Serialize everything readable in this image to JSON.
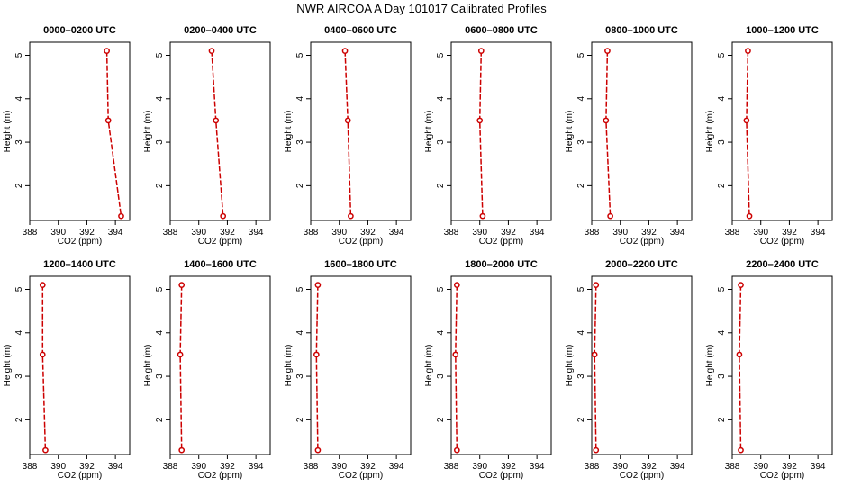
{
  "title": "NWR AIRCOA A  Day 101017  Calibrated Profiles",
  "colors": {
    "series": "#cc0000",
    "axis": "#000000"
  },
  "chart_data": [
    {
      "type": "line",
      "title": "0000–0200 UTC",
      "xlabel": "CO2 (ppm)",
      "ylabel": "Height (m)",
      "xlim": [
        388,
        395
      ],
      "ylim": [
        1.2,
        5.3
      ],
      "xticks": [
        388,
        390,
        392,
        394
      ],
      "yticks": [
        2,
        3,
        4,
        5
      ],
      "grid": false,
      "x": [
        393.4,
        393.5,
        394.4
      ],
      "y": [
        5.1,
        3.5,
        1.3
      ]
    },
    {
      "type": "line",
      "title": "0200–0400 UTC",
      "xlabel": "CO2 (ppm)",
      "ylabel": "Height (m)",
      "xlim": [
        388,
        395
      ],
      "ylim": [
        1.2,
        5.3
      ],
      "xticks": [
        388,
        390,
        392,
        394
      ],
      "yticks": [
        2,
        3,
        4,
        5
      ],
      "grid": false,
      "x": [
        390.9,
        391.2,
        391.7
      ],
      "y": [
        5.1,
        3.5,
        1.3
      ]
    },
    {
      "type": "line",
      "title": "0400–0600 UTC",
      "xlabel": "CO2 (ppm)",
      "ylabel": "Height (m)",
      "xlim": [
        388,
        395
      ],
      "ylim": [
        1.2,
        5.3
      ],
      "xticks": [
        388,
        390,
        392,
        394
      ],
      "yticks": [
        2,
        3,
        4,
        5
      ],
      "grid": false,
      "x": [
        390.4,
        390.6,
        390.8
      ],
      "y": [
        5.1,
        3.5,
        1.3
      ]
    },
    {
      "type": "line",
      "title": "0600–0800 UTC",
      "xlabel": "CO2 (ppm)",
      "ylabel": "Height (m)",
      "xlim": [
        388,
        395
      ],
      "ylim": [
        1.2,
        5.3
      ],
      "xticks": [
        388,
        390,
        392,
        394
      ],
      "yticks": [
        2,
        3,
        4,
        5
      ],
      "grid": false,
      "x": [
        390.1,
        390.0,
        390.2
      ],
      "y": [
        5.1,
        3.5,
        1.3
      ]
    },
    {
      "type": "line",
      "title": "0800–1000 UTC",
      "xlabel": "CO2 (ppm)",
      "ylabel": "Height (m)",
      "xlim": [
        388,
        395
      ],
      "ylim": [
        1.2,
        5.3
      ],
      "xticks": [
        388,
        390,
        392,
        394
      ],
      "yticks": [
        2,
        3,
        4,
        5
      ],
      "grid": false,
      "x": [
        389.1,
        389.0,
        389.3
      ],
      "y": [
        5.1,
        3.5,
        1.3
      ]
    },
    {
      "type": "line",
      "title": "1000–1200 UTC",
      "xlabel": "CO2 (ppm)",
      "ylabel": "Height (m)",
      "xlim": [
        388,
        395
      ],
      "ylim": [
        1.2,
        5.3
      ],
      "xticks": [
        388,
        390,
        392,
        394
      ],
      "yticks": [
        2,
        3,
        4,
        5
      ],
      "grid": false,
      "x": [
        389.1,
        389.0,
        389.2
      ],
      "y": [
        5.1,
        3.5,
        1.3
      ]
    },
    {
      "type": "line",
      "title": "1200–1400 UTC",
      "xlabel": "CO2 (ppm)",
      "ylabel": "Height (m)",
      "xlim": [
        388,
        395
      ],
      "ylim": [
        1.2,
        5.3
      ],
      "xticks": [
        388,
        390,
        392,
        394
      ],
      "yticks": [
        2,
        3,
        4,
        5
      ],
      "grid": false,
      "x": [
        388.9,
        388.9,
        389.1
      ],
      "y": [
        5.1,
        3.5,
        1.3
      ]
    },
    {
      "type": "line",
      "title": "1400–1600 UTC",
      "xlabel": "CO2 (ppm)",
      "ylabel": "Height (m)",
      "xlim": [
        388,
        395
      ],
      "ylim": [
        1.2,
        5.3
      ],
      "xticks": [
        388,
        390,
        392,
        394
      ],
      "yticks": [
        2,
        3,
        4,
        5
      ],
      "grid": false,
      "x": [
        388.8,
        388.7,
        388.8
      ],
      "y": [
        5.1,
        3.5,
        1.3
      ]
    },
    {
      "type": "line",
      "title": "1600–1800 UTC",
      "xlabel": "CO2 (ppm)",
      "ylabel": "Height (m)",
      "xlim": [
        388,
        395
      ],
      "ylim": [
        1.2,
        5.3
      ],
      "xticks": [
        388,
        390,
        392,
        394
      ],
      "yticks": [
        2,
        3,
        4,
        5
      ],
      "grid": false,
      "x": [
        388.5,
        388.4,
        388.5
      ],
      "y": [
        5.1,
        3.5,
        1.3
      ]
    },
    {
      "type": "line",
      "title": "1800–2000 UTC",
      "xlabel": "CO2 (ppm)",
      "ylabel": "Height (m)",
      "xlim": [
        388,
        395
      ],
      "ylim": [
        1.2,
        5.3
      ],
      "xticks": [
        388,
        390,
        392,
        394
      ],
      "yticks": [
        2,
        3,
        4,
        5
      ],
      "grid": false,
      "x": [
        388.4,
        388.3,
        388.4
      ],
      "y": [
        5.1,
        3.5,
        1.3
      ]
    },
    {
      "type": "line",
      "title": "2000–2200 UTC",
      "xlabel": "CO2 (ppm)",
      "ylabel": "Height (m)",
      "xlim": [
        388,
        395
      ],
      "ylim": [
        1.2,
        5.3
      ],
      "xticks": [
        388,
        390,
        392,
        394
      ],
      "yticks": [
        2,
        3,
        4,
        5
      ],
      "grid": false,
      "x": [
        388.3,
        388.2,
        388.3
      ],
      "y": [
        5.1,
        3.5,
        1.3
      ]
    },
    {
      "type": "line",
      "title": "2200–2400 UTC",
      "xlabel": "CO2 (ppm)",
      "ylabel": "Height (m)",
      "xlim": [
        388,
        395
      ],
      "ylim": [
        1.2,
        5.3
      ],
      "xticks": [
        388,
        390,
        392,
        394
      ],
      "yticks": [
        2,
        3,
        4,
        5
      ],
      "grid": false,
      "x": [
        388.6,
        388.5,
        388.6
      ],
      "y": [
        5.1,
        3.5,
        1.3
      ]
    }
  ]
}
